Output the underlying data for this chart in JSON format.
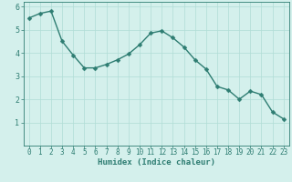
{
  "x": [
    0,
    1,
    2,
    3,
    4,
    5,
    6,
    7,
    8,
    9,
    10,
    11,
    12,
    13,
    14,
    15,
    16,
    17,
    18,
    19,
    20,
    21,
    22,
    23
  ],
  "y": [
    5.5,
    5.7,
    5.8,
    4.5,
    3.9,
    3.35,
    3.35,
    3.5,
    3.7,
    3.95,
    4.35,
    4.85,
    4.95,
    4.65,
    4.25,
    3.7,
    3.3,
    2.55,
    2.4,
    2.0,
    2.35,
    2.2,
    1.45,
    1.15
  ],
  "line_color": "#2e7d72",
  "marker": "D",
  "markersize": 2.5,
  "linewidth": 1.0,
  "bg_color": "#d4f0ec",
  "grid_color": "#b0ddd6",
  "xlabel": "Humidex (Indice chaleur)",
  "xlim": [
    -0.5,
    23.5
  ],
  "ylim": [
    0,
    6.2
  ],
  "yticks": [
    1,
    2,
    3,
    4,
    5,
    6
  ],
  "xticks": [
    0,
    1,
    2,
    3,
    4,
    5,
    6,
    7,
    8,
    9,
    10,
    11,
    12,
    13,
    14,
    15,
    16,
    17,
    18,
    19,
    20,
    21,
    22,
    23
  ],
  "xlabel_fontsize": 6.5,
  "tick_fontsize": 5.5,
  "ytick_fontsize": 6,
  "axis_color": "#2e7d72",
  "tick_color": "#2e7d72"
}
